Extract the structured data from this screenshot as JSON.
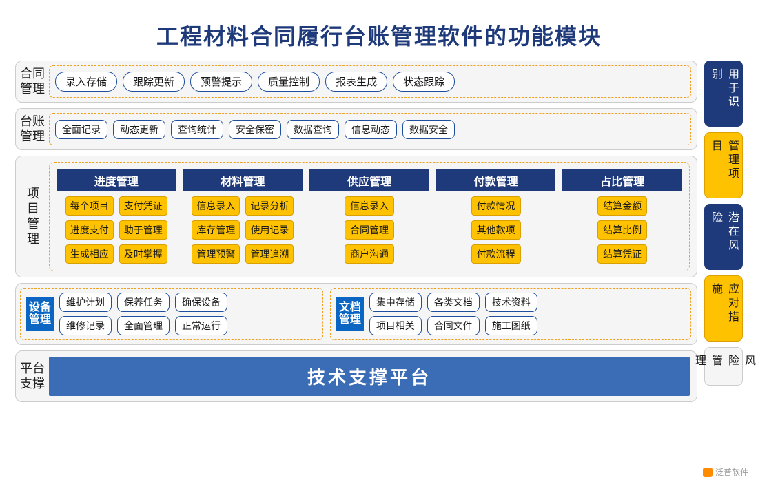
{
  "title": "工程材料合同履行台账管理软件的功能模块",
  "colors": {
    "navy": "#1f3a7a",
    "orange": "#ffc200",
    "orange_border": "#d9a000",
    "dash_border": "#f0a020",
    "blue_bar": "#3a6db5",
    "grey_bg": "#f5f5f5",
    "blue_tag": "#0a66c2"
  },
  "row1": {
    "label": "合同管理",
    "items": [
      "录入存储",
      "跟踪更新",
      "预警提示",
      "质量控制",
      "报表生成",
      "状态跟踪"
    ]
  },
  "row2": {
    "label": "台账管理",
    "items": [
      "全面记录",
      "动态更新",
      "查询统计",
      "安全保密",
      "数据查询",
      "信息动态",
      "数据安全"
    ]
  },
  "project": {
    "label": "项目管理",
    "cols": [
      {
        "head": "进度管理",
        "rows": [
          [
            "每个项目",
            "支付凭证"
          ],
          [
            "进度支付",
            "助于管理"
          ],
          [
            "生成相应",
            "及时掌握"
          ]
        ]
      },
      {
        "head": "材料管理",
        "rows": [
          [
            "信息录入",
            "记录分析"
          ],
          [
            "库存管理",
            "使用记录"
          ],
          [
            "管理预警",
            "管理追溯"
          ]
        ]
      },
      {
        "head": "供应管理",
        "rows": [
          [
            "信息录入"
          ],
          [
            "合同管理"
          ],
          [
            "商户沟通"
          ]
        ]
      },
      {
        "head": "付款管理",
        "rows": [
          [
            "付款情况"
          ],
          [
            "其他款项"
          ],
          [
            "付款流程"
          ]
        ]
      },
      {
        "head": "占比管理",
        "rows": [
          [
            "结算金额"
          ],
          [
            "结算比例"
          ],
          [
            "结算凭证"
          ]
        ]
      }
    ]
  },
  "dual": {
    "left": {
      "tag": "设备管理",
      "rows": [
        [
          "维护计划",
          "保养任务",
          "确保设备"
        ],
        [
          "维修记录",
          "全面管理",
          "正常运行"
        ]
      ]
    },
    "right": {
      "tag": "文档管理",
      "rows": [
        [
          "集中存储",
          "各类文档",
          "技术资料"
        ],
        [
          "项目相关",
          "合同文件",
          "施工图纸"
        ]
      ]
    }
  },
  "platform": {
    "label": "平台支撑",
    "text": "技术支撑平台"
  },
  "rightcol": [
    {
      "text": "用于识别",
      "style": "navy"
    },
    {
      "text": "管理项目",
      "style": "orange"
    },
    {
      "text": "潜在风险",
      "style": "navy"
    },
    {
      "text": "应对措施",
      "style": "orange"
    },
    {
      "text": "风险管理",
      "style": "grey"
    }
  ],
  "watermark": "泛普软件"
}
